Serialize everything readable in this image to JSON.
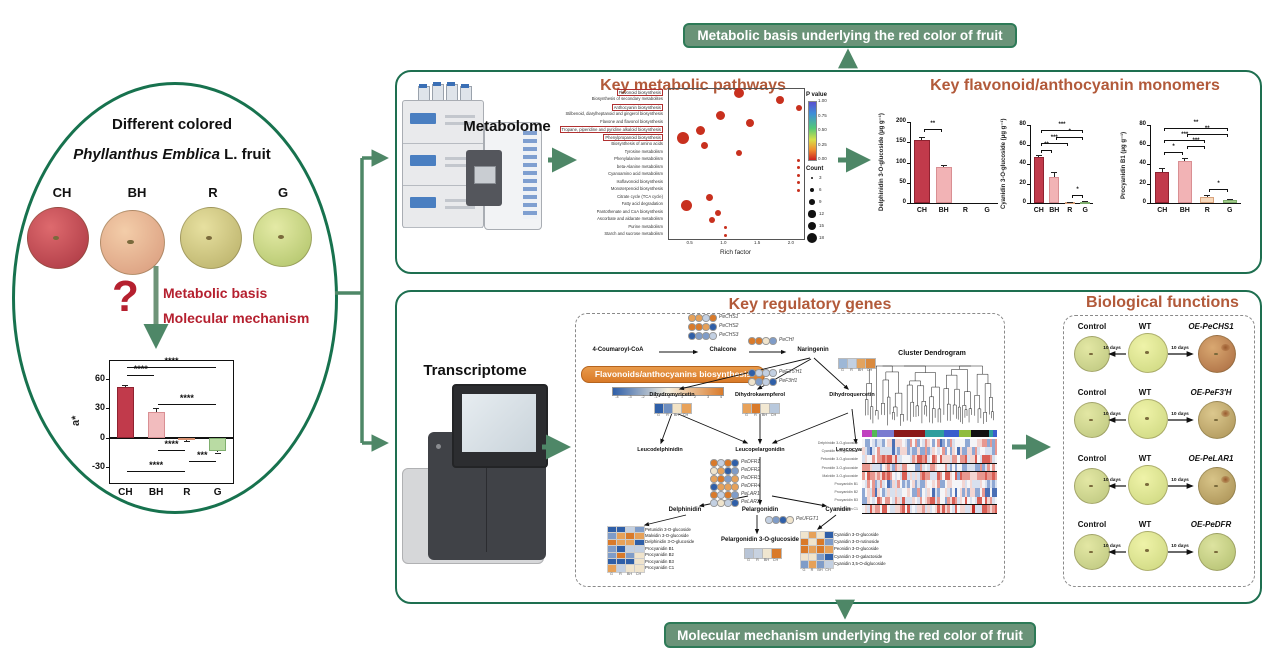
{
  "banners": {
    "top": "Metabolic basis underlying the red color of fruit",
    "bottom": "Molecular mechanism underlying the red color of fruit"
  },
  "left_panel": {
    "title_line1": "Different colored",
    "species_italic": "Phyllanthus Emblica",
    "species_rest": " L. fruit",
    "question_mark": "?",
    "red_lines": [
      "Metabolic basis",
      "Molecular mechanism"
    ],
    "fruits": [
      {
        "label": "CH",
        "inner": "#de6a6e",
        "outer": "#a93641"
      },
      {
        "label": "BH",
        "inner": "#f3cda9",
        "outer": "#d8997b"
      },
      {
        "label": "R",
        "inner": "#e7e0a0",
        "outer": "#b7ae66"
      },
      {
        "label": "G",
        "inner": "#e4eaa6",
        "outer": "#aec266"
      }
    ]
  },
  "metabolome": {
    "label": "Metabolome",
    "section_title": "Key metabolic pathways"
  },
  "monomers_title": "Key flavonoid/anthocyanin monomers",
  "transcriptome": {
    "label": "Transcriptome",
    "section_title": "Key regulatory genes"
  },
  "bio": {
    "title": "Biological functions",
    "arrow_label": "10 days",
    "rows": [
      {
        "left": "Control",
        "mid": "WT",
        "right": "OE-PeCHS1"
      },
      {
        "left": "Control",
        "mid": "WT",
        "right": "OE-PeF3'H"
      },
      {
        "left": "Control",
        "mid": "WT",
        "right": "OE-PeLAR1"
      },
      {
        "left": "Control",
        "mid": "WT",
        "right": "OE-PeDFR"
      }
    ],
    "fruit_colors": {
      "control": {
        "inner": "#e3e7a4",
        "outer": "#bcc67e"
      },
      "wt": {
        "inner": "#eff3a9",
        "outer": "#ccd67e"
      },
      "oe": [
        {
          "inner": "#d9a871",
          "outer": "#a96a40"
        },
        {
          "inner": "#dcc88e",
          "outer": "#ab9256"
        },
        {
          "inner": "#d8c488",
          "outer": "#a78e52"
        },
        {
          "inner": "#dde3a0",
          "outer": "#b2bf6f"
        }
      ]
    }
  },
  "pathway": {
    "banner": "Flavonoids/anthocyanins biosynthesis",
    "scale_ticks": [
      "-4",
      "-3",
      "-2",
      "-1",
      "0",
      "1",
      "2",
      "3",
      "4"
    ],
    "samples": [
      "G",
      "R",
      "BH",
      "CH"
    ],
    "start": "4-Coumaroyl-CoA",
    "chalcone": "Chalcone",
    "naringenin": "Naringenin",
    "genes_chs": [
      "PeCHS1",
      "PeCHS2",
      "PeCHS3"
    ],
    "gene_chi": "PeCHI",
    "genes_f3h": [
      "PeF3'5'H1",
      "PeF3H1"
    ],
    "branch": [
      "Dihydromyricetin",
      "Dihydrokaempferol",
      "Dihydroquercetin"
    ],
    "leuco": [
      "Leucodelphinidin",
      "Leucopelargonidin",
      "Leucocyanidin"
    ],
    "genes_dfr": [
      "PeDFR1",
      "PeDFR2",
      "PeDFR3",
      "PeDFR4",
      "PeLAR1",
      "PeLAR2"
    ],
    "gene_ufgt": "PeUFGT1",
    "anthocyanidins": [
      "Delphinidin",
      "Pelargonidin",
      "Cyanidin"
    ],
    "center_product": "Pelargonidin 3-O-glucoside",
    "left_products": [
      "Petunidin 3-O-glucoside",
      "Malvidin 3-O-glucoside",
      "Delphinidin 3-O-glucoside",
      "Procyanidin B1",
      "Procyanidin B2",
      "Procyanidin B3",
      "Procyanidin C1"
    ],
    "right_products": [
      "Cyanidin 3-O-glucoside",
      "Cyanidin 3-O-rutinoside",
      "Peonidin 3-O-glucoside",
      "Cyanidin 3-O-galactoside",
      "Cyanidin 3,5-O-diglucoside"
    ],
    "strips": {
      "naringenin": [
        "#9db7d6",
        "#c2d0e2",
        "#e2a35f",
        "#d98a3f"
      ],
      "dihydromyricetin": [
        "#2f5fa8",
        "#6f8fc0",
        "#f2e3c6",
        "#e8a25a"
      ],
      "dihydrokaempferol": [
        "#e8a25a",
        "#d97a2a",
        "#f2e8d2",
        "#b8c8dc"
      ],
      "pelargonidin": [
        "#b8c4d6",
        "#c8d2e0",
        "#f0e6d0",
        "#d97a2a"
      ]
    }
  },
  "wgcna": {
    "title": "Cluster Dendrogram",
    "module_colors": [
      "#111111",
      "#8b1a1a",
      "#e8d84f",
      "#d02020",
      "#3a5fcd",
      "#202a80",
      "#7a7ad0",
      "#2f9e9e",
      "#55b855",
      "#8fbc3f",
      "#c040c0",
      "#e8a030",
      "#40c0c0",
      "#b0b0b0"
    ],
    "row_labels": [
      "Delphinidin 3-O-glucoside",
      "Cyanidin 3-O-glucoside",
      "Petunidin 3-O-glucoside",
      "Peonidin 3-O-glucoside",
      "Malvidin 3-O-glucoside",
      "Procyanidin B1",
      "Procyanidin B2",
      "Procyanidin B3",
      "Procyanidin C1"
    ]
  },
  "chart_data": [
    {
      "id": "a_star",
      "type": "bar",
      "ylabel": "a*",
      "categories": [
        "CH",
        "BH",
        "R",
        "G"
      ],
      "values": [
        52,
        26,
        -2,
        -13
      ],
      "errors": [
        1.5,
        4,
        1,
        2
      ],
      "colors": [
        "#c13a4b",
        "#f2bcbe",
        "#f0b9a0",
        "#b9dba3"
      ],
      "border_colors": [
        "#8f2230",
        "#d98f93",
        "#d69070",
        "#7fae6e"
      ],
      "ylim": [
        -46,
        78
      ],
      "yticks": [
        60,
        30,
        0,
        -30
      ],
      "sig": [
        {
          "a": 0,
          "b": 1,
          "y": 64,
          "t": "****"
        },
        {
          "a": 0,
          "b": 3,
          "y": 72,
          "t": "****"
        },
        {
          "a": 1,
          "b": 3,
          "y": 34,
          "t": "****"
        },
        {
          "a": 1,
          "b": 2,
          "y": -12,
          "t": "****"
        },
        {
          "a": 2,
          "b": 3,
          "y": -24,
          "t": "***"
        },
        {
          "a": 0,
          "b": 2,
          "y": -34,
          "t": "****"
        }
      ]
    },
    {
      "id": "delphinidin",
      "type": "bar",
      "ylabel": "Delphinidin 3-O-glucoside (μg g⁻¹)",
      "categories": [
        "CH",
        "BH",
        "R",
        "G"
      ],
      "values": [
        155,
        90,
        0,
        0
      ],
      "errors": [
        8,
        3,
        0,
        0
      ],
      "colors": [
        "#c13a4b",
        "#f2b3b5",
        "#f5cdb0",
        "#a8d08d"
      ],
      "border_colors": [
        "#8f2230",
        "#d98f93",
        "#d8a27c",
        "#7fae6e"
      ],
      "ylim": [
        0,
        200
      ],
      "yticks": [
        200,
        150,
        100,
        50,
        0
      ],
      "sig": [
        {
          "a": 0,
          "b": 1,
          "y": 183,
          "t": "**"
        }
      ]
    },
    {
      "id": "cyanidin",
      "type": "bar",
      "ylabel": "Cyanidin 3-O-glucoside (μg g⁻¹)",
      "categories": [
        "CH",
        "BH",
        "R",
        "G"
      ],
      "values": [
        47,
        27,
        0.8,
        1.2
      ],
      "errors": [
        2,
        5,
        0.4,
        0.6
      ],
      "colors": [
        "#c13a4b",
        "#f2b3b5",
        "#f5cdb0",
        "#a8d08d"
      ],
      "border_colors": [
        "#8f2230",
        "#d98f93",
        "#d8a27c",
        "#7fae6e"
      ],
      "ylim": [
        0,
        80
      ],
      "yticks": [
        80,
        60,
        40,
        20,
        0
      ],
      "sig": [
        {
          "a": 0,
          "b": 1,
          "y": 54,
          "t": "**"
        },
        {
          "a": 0,
          "b": 2,
          "y": 62,
          "t": "***"
        },
        {
          "a": 1,
          "b": 3,
          "y": 68,
          "t": "*"
        },
        {
          "a": 0,
          "b": 3,
          "y": 75,
          "t": "***"
        },
        {
          "a": 2,
          "b": 3,
          "y": 8,
          "t": "*"
        }
      ]
    },
    {
      "id": "procyanidin",
      "type": "bar",
      "ylabel": "Procyanidin B1 (μg g⁻¹)",
      "categories": [
        "CH",
        "BH",
        "R",
        "G"
      ],
      "values": [
        32,
        43,
        6,
        3
      ],
      "errors": [
        4,
        3,
        2,
        1
      ],
      "colors": [
        "#c13a4b",
        "#f2b3b5",
        "#f7d9bc",
        "#a8d08d"
      ],
      "border_colors": [
        "#8f2230",
        "#d98f93",
        "#d8a27c",
        "#7fae6e"
      ],
      "ylim": [
        0,
        80
      ],
      "yticks": [
        80,
        60,
        40,
        20,
        0
      ],
      "sig": [
        {
          "a": 0,
          "b": 1,
          "y": 52,
          "t": "*"
        },
        {
          "a": 1,
          "b": 2,
          "y": 58,
          "t": "***"
        },
        {
          "a": 0,
          "b": 2,
          "y": 65,
          "t": "***"
        },
        {
          "a": 1,
          "b": 3,
          "y": 71,
          "t": "**"
        },
        {
          "a": 0,
          "b": 3,
          "y": 77,
          "t": "**"
        },
        {
          "a": 2,
          "b": 3,
          "y": 14,
          "t": "*"
        }
      ]
    },
    {
      "id": "kegg",
      "type": "scatter",
      "xlabel": "Rich factor",
      "xticks": [
        "0.5",
        "1.0",
        "1.5",
        "2.0"
      ],
      "legend": {
        "pvalue_title": "P value",
        "pvalue_ticks": [
          "1.00",
          "0.75",
          "0.50",
          "0.25",
          "0.00"
        ],
        "count_title": "Count",
        "count_sizes": [
          "3",
          "6",
          "9",
          "12",
          "15",
          "18"
        ]
      },
      "rows": [
        {
          "label": "Flavonoid biosynthesis",
          "x": 0.52,
          "r": 5,
          "box": true
        },
        {
          "label": "Biosynthesis of secondary metabolites",
          "x": 0.82,
          "r": 4,
          "box": false
        },
        {
          "label": "Anthocyanin biosynthesis",
          "x": 0.96,
          "r": 3,
          "box": true
        },
        {
          "label": "Stilbenoid, diarylheptanoid and gingerol biosynthesis",
          "x": 0.38,
          "r": 4.5,
          "box": false
        },
        {
          "label": "Flavone and flavonol biosynthesis",
          "x": 0.6,
          "r": 4,
          "box": false
        },
        {
          "label": "Tropane, piperidine and pyridine alkaloid biosynthesis",
          "x": 0.23,
          "r": 4.5,
          "box": true
        },
        {
          "label": "Phenylpropanoid biosynthesis",
          "x": 0.1,
          "r": 6,
          "box": true
        },
        {
          "label": "Biosynthesis of amino acids",
          "x": 0.26,
          "r": 3.5,
          "box": false
        },
        {
          "label": "Tyrosine metabolism",
          "x": 0.52,
          "r": 3,
          "box": false
        },
        {
          "label": "Phenylalanine metabolism",
          "x": 0.96,
          "r": 1.5,
          "box": false
        },
        {
          "label": "beta-Alanine metabolism",
          "x": 0.96,
          "r": 1.5,
          "box": false
        },
        {
          "label": "Cyanoamino acid metabolism",
          "x": 0.96,
          "r": 1.5,
          "box": false
        },
        {
          "label": "Isoflavonoid biosynthesis",
          "x": 0.96,
          "r": 1.5,
          "box": false
        },
        {
          "label": "Monoterpenoid biosynthesis",
          "x": 0.96,
          "r": 1.5,
          "box": false
        },
        {
          "label": "Citrate cycle (TCA cycle)",
          "x": 0.3,
          "r": 3.5,
          "box": false
        },
        {
          "label": "Fatty acid degradation",
          "x": 0.13,
          "r": 5.5,
          "box": false
        },
        {
          "label": "Pantothenate and CoA biosynthesis",
          "x": 0.36,
          "r": 3,
          "box": false
        },
        {
          "label": "Ascorbate and aldarate metabolism",
          "x": 0.32,
          "r": 3,
          "box": false
        },
        {
          "label": "Purine metabolism",
          "x": 0.42,
          "r": 1.5,
          "box": false
        },
        {
          "label": "Starch and sucrose metabolism",
          "x": 0.42,
          "r": 1.5,
          "box": false
        }
      ]
    }
  ],
  "colors": {
    "green_border": "#1e6f50",
    "banner_bg": "#6a9378",
    "banner_border": "#2d7a57",
    "arrow": "#4e8767",
    "title_brown": "#b25a3a",
    "red_text": "#b5202f",
    "dot_red": "#c8301e"
  }
}
